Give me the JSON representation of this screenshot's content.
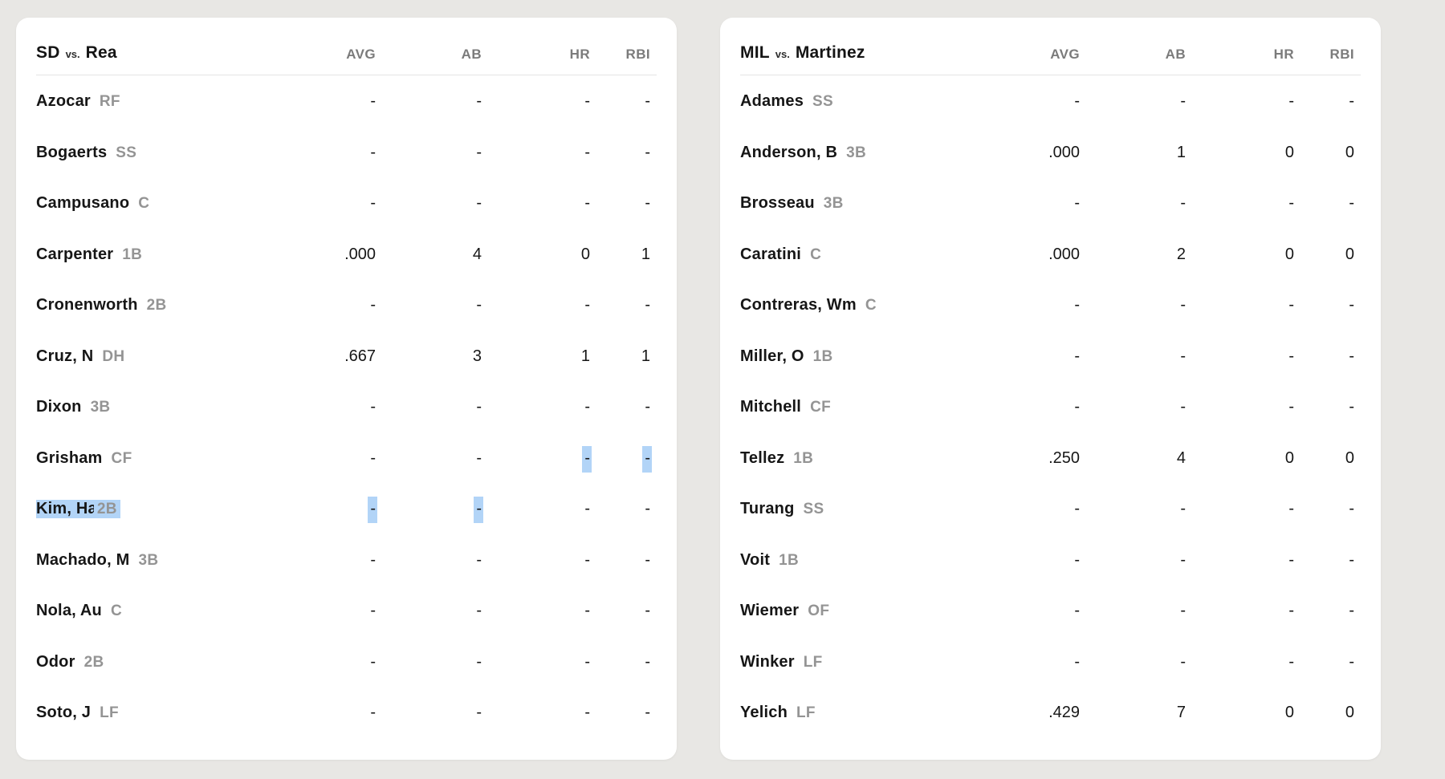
{
  "colors": {
    "page_bg": "#e8e7e4",
    "card_bg": "#ffffff",
    "selection_highlight": "#b2d4f7",
    "player_name_text": "#161616",
    "position_text": "#949494",
    "column_header_text": "#7b7b7b",
    "divider": "#e4e4e4"
  },
  "columns": [
    "AVG",
    "AB",
    "HR",
    "RBI"
  ],
  "tables": [
    {
      "team": "SD",
      "vs_label": "vs.",
      "pitcher": "Rea",
      "rows": [
        {
          "name": "Azocar",
          "pos": "RF",
          "avg": "-",
          "ab": "-",
          "hr": "-",
          "rbi": "-",
          "selected": []
        },
        {
          "name": "Bogaerts",
          "pos": "SS",
          "avg": "-",
          "ab": "-",
          "hr": "-",
          "rbi": "-",
          "selected": []
        },
        {
          "name": "Campusano",
          "pos": "C",
          "avg": "-",
          "ab": "-",
          "hr": "-",
          "rbi": "-",
          "selected": []
        },
        {
          "name": "Carpenter",
          "pos": "1B",
          "avg": ".000",
          "ab": "4",
          "hr": "0",
          "rbi": "1",
          "selected": []
        },
        {
          "name": "Cronenworth",
          "pos": "2B",
          "avg": "-",
          "ab": "-",
          "hr": "-",
          "rbi": "-",
          "selected": []
        },
        {
          "name": "Cruz, N",
          "pos": "DH",
          "avg": ".667",
          "ab": "3",
          "hr": "1",
          "rbi": "1",
          "selected": []
        },
        {
          "name": "Dixon",
          "pos": "3B",
          "avg": "-",
          "ab": "-",
          "hr": "-",
          "rbi": "-",
          "selected": []
        },
        {
          "name": "Grisham",
          "pos": "CF",
          "avg": "-",
          "ab": "-",
          "hr": "-",
          "rbi": "-",
          "selected": [
            "hr",
            "rbi"
          ]
        },
        {
          "name": "Kim, Ha",
          "pos": "2B",
          "avg": "-",
          "ab": "-",
          "hr": "-",
          "rbi": "-",
          "selected": [
            "name",
            "pos",
            "avg",
            "ab"
          ]
        },
        {
          "name": "Machado, M",
          "pos": "3B",
          "avg": "-",
          "ab": "-",
          "hr": "-",
          "rbi": "-",
          "selected": []
        },
        {
          "name": "Nola, Au",
          "pos": "C",
          "avg": "-",
          "ab": "-",
          "hr": "-",
          "rbi": "-",
          "selected": []
        },
        {
          "name": "Odor",
          "pos": "2B",
          "avg": "-",
          "ab": "-",
          "hr": "-",
          "rbi": "-",
          "selected": []
        },
        {
          "name": "Soto, J",
          "pos": "LF",
          "avg": "-",
          "ab": "-",
          "hr": "-",
          "rbi": "-",
          "selected": []
        }
      ]
    },
    {
      "team": "MIL",
      "vs_label": "vs.",
      "pitcher": "Martinez",
      "rows": [
        {
          "name": "Adames",
          "pos": "SS",
          "avg": "-",
          "ab": "-",
          "hr": "-",
          "rbi": "-",
          "selected": []
        },
        {
          "name": "Anderson, B",
          "pos": "3B",
          "avg": ".000",
          "ab": "1",
          "hr": "0",
          "rbi": "0",
          "selected": []
        },
        {
          "name": "Brosseau",
          "pos": "3B",
          "avg": "-",
          "ab": "-",
          "hr": "-",
          "rbi": "-",
          "selected": []
        },
        {
          "name": "Caratini",
          "pos": "C",
          "avg": ".000",
          "ab": "2",
          "hr": "0",
          "rbi": "0",
          "selected": []
        },
        {
          "name": "Contreras, Wm",
          "pos": "C",
          "avg": "-",
          "ab": "-",
          "hr": "-",
          "rbi": "-",
          "selected": []
        },
        {
          "name": "Miller, O",
          "pos": "1B",
          "avg": "-",
          "ab": "-",
          "hr": "-",
          "rbi": "-",
          "selected": []
        },
        {
          "name": "Mitchell",
          "pos": "CF",
          "avg": "-",
          "ab": "-",
          "hr": "-",
          "rbi": "-",
          "selected": []
        },
        {
          "name": "Tellez",
          "pos": "1B",
          "avg": ".250",
          "ab": "4",
          "hr": "0",
          "rbi": "0",
          "selected": []
        },
        {
          "name": "Turang",
          "pos": "SS",
          "avg": "-",
          "ab": "-",
          "hr": "-",
          "rbi": "-",
          "selected": []
        },
        {
          "name": "Voit",
          "pos": "1B",
          "avg": "-",
          "ab": "-",
          "hr": "-",
          "rbi": "-",
          "selected": []
        },
        {
          "name": "Wiemer",
          "pos": "OF",
          "avg": "-",
          "ab": "-",
          "hr": "-",
          "rbi": "-",
          "selected": []
        },
        {
          "name": "Winker",
          "pos": "LF",
          "avg": "-",
          "ab": "-",
          "hr": "-",
          "rbi": "-",
          "selected": []
        },
        {
          "name": "Yelich",
          "pos": "LF",
          "avg": ".429",
          "ab": "7",
          "hr": "0",
          "rbi": "0",
          "selected": []
        }
      ]
    }
  ]
}
